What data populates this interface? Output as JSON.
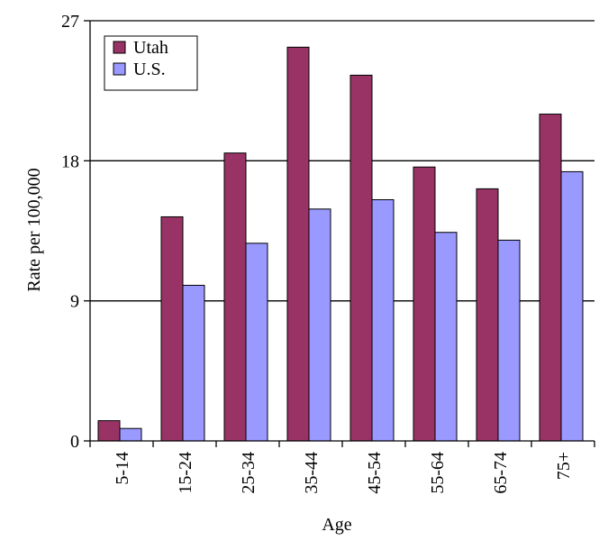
{
  "chart_data": {
    "type": "bar",
    "title": "",
    "xlabel": "Age",
    "ylabel": "Rate per 100,000",
    "ylim": [
      0,
      27
    ],
    "yticks": [
      0,
      9,
      18,
      27
    ],
    "grid": true,
    "legend_position": "top-left",
    "categories": [
      "5-14",
      "15-24",
      "25-34",
      "35-44",
      "45-54",
      "55-64",
      "65-74",
      "75+"
    ],
    "series": [
      {
        "name": "Utah",
        "color": "#993366",
        "values": [
          1.3,
          14.4,
          18.5,
          25.3,
          23.5,
          17.6,
          16.2,
          21.0
        ]
      },
      {
        "name": "U.S.",
        "color": "#9999FF",
        "values": [
          0.8,
          10.0,
          12.7,
          14.9,
          15.5,
          13.4,
          12.9,
          17.3
        ]
      }
    ]
  }
}
